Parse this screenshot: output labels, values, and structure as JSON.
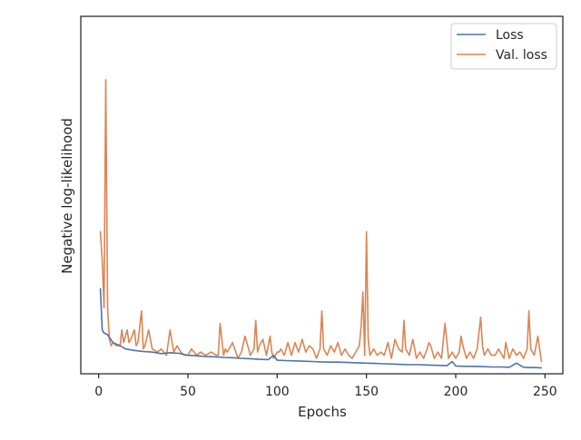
{
  "chart_data": {
    "type": "line",
    "xlabel": "Epochs",
    "ylabel": "Negative log-likelihood",
    "xlim": [
      -10,
      260
    ],
    "ylim": [
      0,
      1
    ],
    "y_tick_labels_shown": false,
    "x_ticks": [
      0,
      50,
      100,
      150,
      200,
      250
    ],
    "x_tick_labels": [
      "0",
      "50",
      "100",
      "150",
      "200",
      "250"
    ],
    "grid": false,
    "legend_placement": "top-right",
    "colors": {
      "loss": "#4c72b0",
      "val_loss": "#dd8452",
      "axes": "#262626"
    },
    "series": [
      {
        "name": "Loss",
        "color": "#4c72b0",
        "x": [
          1,
          2,
          3,
          5,
          8,
          10,
          12,
          15,
          20,
          25,
          30,
          35,
          40,
          45,
          50,
          55,
          60,
          65,
          70,
          75,
          80,
          85,
          90,
          95,
          98,
          100,
          105,
          110,
          115,
          120,
          125,
          130,
          135,
          140,
          145,
          150,
          155,
          160,
          165,
          170,
          175,
          180,
          185,
          190,
          195,
          198,
          200,
          205,
          210,
          215,
          220,
          225,
          230,
          234,
          238,
          242,
          245,
          248
        ],
        "y": [
          0.26,
          0.13,
          0.12,
          0.115,
          0.09,
          0.085,
          0.08,
          0.07,
          0.065,
          0.062,
          0.06,
          0.055,
          0.058,
          0.056,
          0.05,
          0.048,
          0.046,
          0.045,
          0.043,
          0.042,
          0.04,
          0.039,
          0.037,
          0.036,
          0.05,
          0.034,
          0.033,
          0.032,
          0.031,
          0.03,
          0.029,
          0.028,
          0.028,
          0.027,
          0.026,
          0.025,
          0.024,
          0.023,
          0.022,
          0.021,
          0.02,
          0.02,
          0.019,
          0.018,
          0.017,
          0.03,
          0.016,
          0.015,
          0.015,
          0.014,
          0.013,
          0.013,
          0.012,
          0.025,
          0.012,
          0.011,
          0.011,
          0.01
        ]
      },
      {
        "name": "Val. loss",
        "color": "#dd8452",
        "x": [
          1,
          2,
          3,
          4,
          5,
          6,
          7,
          8,
          10,
          12,
          13,
          14,
          16,
          17,
          18,
          20,
          21,
          22,
          24,
          25,
          26,
          28,
          30,
          33,
          35,
          38,
          40,
          42,
          44,
          46,
          48,
          50,
          52,
          55,
          57,
          60,
          63,
          66,
          67,
          68,
          70,
          71,
          72,
          75,
          78,
          80,
          82,
          85,
          87,
          88,
          89,
          90,
          92,
          94,
          96,
          97,
          98,
          100,
          101,
          102,
          104,
          106,
          108,
          110,
          112,
          114,
          116,
          118,
          120,
          122,
          124,
          125,
          126,
          128,
          130,
          132,
          134,
          136,
          138,
          140,
          142,
          144,
          146,
          147,
          148,
          149,
          150,
          151,
          152,
          154,
          156,
          158,
          160,
          162,
          164,
          166,
          168,
          170,
          171,
          172,
          174,
          176,
          178,
          180,
          182,
          184,
          185,
          186,
          188,
          190,
          192,
          194,
          196,
          198,
          200,
          202,
          203,
          204,
          206,
          208,
          210,
          212,
          214,
          215,
          216,
          218,
          220,
          222,
          224,
          226,
          227,
          228,
          230,
          232,
          234,
          236,
          238,
          240,
          241,
          242,
          244,
          246,
          248
        ],
        "y": [
          0.44,
          0.35,
          0.2,
          0.92,
          0.2,
          0.1,
          0.08,
          0.09,
          0.08,
          0.08,
          0.13,
          0.09,
          0.13,
          0.09,
          0.1,
          0.13,
          0.08,
          0.09,
          0.19,
          0.07,
          0.08,
          0.13,
          0.07,
          0.06,
          0.07,
          0.05,
          0.13,
          0.06,
          0.08,
          0.06,
          0.05,
          0.05,
          0.07,
          0.05,
          0.06,
          0.05,
          0.06,
          0.05,
          0.05,
          0.15,
          0.05,
          0.07,
          0.06,
          0.09,
          0.04,
          0.06,
          0.11,
          0.05,
          0.07,
          0.16,
          0.06,
          0.08,
          0.1,
          0.05,
          0.11,
          0.06,
          0.04,
          0.06,
          0.06,
          0.07,
          0.05,
          0.09,
          0.05,
          0.09,
          0.06,
          0.1,
          0.06,
          0.08,
          0.07,
          0.04,
          0.07,
          0.19,
          0.07,
          0.05,
          0.08,
          0.06,
          0.09,
          0.05,
          0.07,
          0.05,
          0.04,
          0.06,
          0.08,
          0.14,
          0.25,
          0.05,
          0.44,
          0.1,
          0.05,
          0.07,
          0.05,
          0.06,
          0.05,
          0.09,
          0.04,
          0.1,
          0.07,
          0.06,
          0.16,
          0.07,
          0.05,
          0.1,
          0.04,
          0.06,
          0.04,
          0.07,
          0.09,
          0.08,
          0.04,
          0.06,
          0.04,
          0.15,
          0.04,
          0.06,
          0.04,
          0.06,
          0.11,
          0.08,
          0.04,
          0.06,
          0.04,
          0.07,
          0.17,
          0.08,
          0.05,
          0.07,
          0.05,
          0.05,
          0.07,
          0.05,
          0.04,
          0.09,
          0.04,
          0.07,
          0.05,
          0.06,
          0.04,
          0.07,
          0.19,
          0.07,
          0.05,
          0.11,
          0.03
        ]
      }
    ]
  }
}
